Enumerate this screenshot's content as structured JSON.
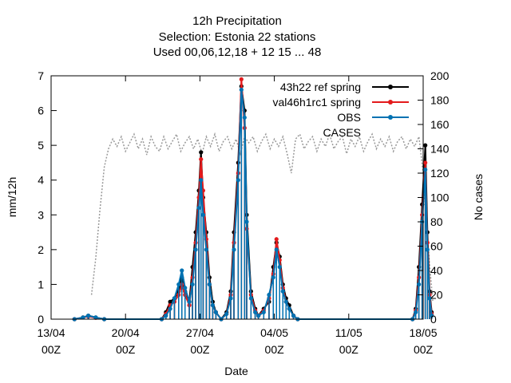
{
  "chart_data": {
    "type": "line",
    "title": [
      "12h Precipitation",
      "Selection: Estonia      22 stations",
      "Used  00,06,12,18  + 12 15 ... 48"
    ],
    "xlabel": "Date",
    "ylabel": "mm/12h",
    "y2label": "No cases",
    "xlim": [
      0,
      35
    ],
    "ylim": [
      0,
      7
    ],
    "y2lim": [
      0,
      200
    ],
    "x_ticks": [
      {
        "x": 0,
        "label": [
          "13/04",
          "00Z"
        ]
      },
      {
        "x": 7,
        "label": [
          "20/04",
          "00Z"
        ]
      },
      {
        "x": 14,
        "label": [
          "27/04",
          "00Z"
        ]
      },
      {
        "x": 21,
        "label": [
          "04/05",
          "00Z"
        ]
      },
      {
        "x": 28,
        "label": [
          "11/05",
          "00Z"
        ]
      },
      {
        "x": 35,
        "label": [
          "18/05",
          "00Z"
        ]
      }
    ],
    "y_ticks": [
      0,
      1,
      2,
      3,
      4,
      5,
      6,
      7
    ],
    "y2_ticks": [
      0,
      20,
      40,
      60,
      80,
      100,
      120,
      140,
      160,
      180,
      200
    ],
    "legend_position": "top-right",
    "series": [
      {
        "name": "43h22 ref spring",
        "color": "#000000",
        "points": [
          [
            2.2,
            0
          ],
          [
            3.0,
            0.05
          ],
          [
            3.5,
            0.1
          ],
          [
            4.2,
            0.05
          ],
          [
            5.0,
            0
          ],
          [
            10.4,
            0
          ],
          [
            10.8,
            0.2
          ],
          [
            11.2,
            0.5
          ],
          [
            11.6,
            0.6
          ],
          [
            12.0,
            0.8
          ],
          [
            12.3,
            1.2
          ],
          [
            12.6,
            0.8
          ],
          [
            13.0,
            0.5
          ],
          [
            13.3,
            1.5
          ],
          [
            13.6,
            2.5
          ],
          [
            13.9,
            3.7
          ],
          [
            14.1,
            4.8
          ],
          [
            14.3,
            3.5
          ],
          [
            14.6,
            2.5
          ],
          [
            14.9,
            1.2
          ],
          [
            15.2,
            0.5
          ],
          [
            15.5,
            0.2
          ],
          [
            16.0,
            0
          ],
          [
            16.5,
            0.2
          ],
          [
            16.9,
            0.8
          ],
          [
            17.2,
            2.5
          ],
          [
            17.6,
            4.5
          ],
          [
            17.9,
            6.7
          ],
          [
            18.2,
            6.0
          ],
          [
            18.4,
            3.0
          ],
          [
            18.8,
            0.8
          ],
          [
            19.2,
            0.3
          ],
          [
            19.5,
            0.1
          ],
          [
            20.0,
            0.3
          ],
          [
            20.5,
            0.5
          ],
          [
            20.9,
            1.5
          ],
          [
            21.2,
            2.2
          ],
          [
            21.5,
            1.8
          ],
          [
            21.8,
            1.0
          ],
          [
            22.1,
            0.6
          ],
          [
            22.4,
            0.4
          ],
          [
            22.8,
            0.1
          ],
          [
            23.2,
            0
          ],
          [
            34.0,
            0
          ],
          [
            34.3,
            0.3
          ],
          [
            34.6,
            1.5
          ],
          [
            34.9,
            3.3
          ],
          [
            35.2,
            5.0
          ],
          [
            35.4,
            2.5
          ],
          [
            35.6,
            0.8
          ],
          [
            35.8,
            0.2
          ]
        ]
      },
      {
        "name": "val46h1rc1 spring",
        "color": "#e31a1c",
        "points": [
          [
            2.2,
            0
          ],
          [
            3.0,
            0.05
          ],
          [
            3.5,
            0.08
          ],
          [
            4.2,
            0.04
          ],
          [
            5.0,
            0
          ],
          [
            10.4,
            0
          ],
          [
            10.8,
            0.15
          ],
          [
            11.2,
            0.4
          ],
          [
            11.6,
            0.5
          ],
          [
            12.0,
            0.7
          ],
          [
            12.3,
            1.0
          ],
          [
            12.6,
            0.7
          ],
          [
            13.0,
            0.4
          ],
          [
            13.3,
            1.2
          ],
          [
            13.6,
            2.2
          ],
          [
            13.9,
            3.5
          ],
          [
            14.1,
            4.6
          ],
          [
            14.3,
            3.7
          ],
          [
            14.6,
            2.3
          ],
          [
            14.9,
            1.0
          ],
          [
            15.2,
            0.4
          ],
          [
            15.5,
            0.2
          ],
          [
            16.0,
            0
          ],
          [
            16.5,
            0.15
          ],
          [
            16.9,
            0.7
          ],
          [
            17.2,
            2.2
          ],
          [
            17.6,
            4.2
          ],
          [
            17.9,
            6.9
          ],
          [
            18.2,
            5.5
          ],
          [
            18.4,
            2.6
          ],
          [
            18.8,
            0.7
          ],
          [
            19.2,
            0.25
          ],
          [
            19.5,
            0.1
          ],
          [
            20.0,
            0.25
          ],
          [
            20.5,
            0.6
          ],
          [
            20.9,
            1.3
          ],
          [
            21.2,
            2.3
          ],
          [
            21.5,
            1.7
          ],
          [
            21.8,
            0.9
          ],
          [
            22.1,
            0.5
          ],
          [
            22.4,
            0.3
          ],
          [
            22.8,
            0.1
          ],
          [
            23.2,
            0
          ],
          [
            34.0,
            0
          ],
          [
            34.3,
            0.25
          ],
          [
            34.6,
            1.2
          ],
          [
            34.9,
            3.0
          ],
          [
            35.2,
            4.5
          ],
          [
            35.4,
            2.2
          ],
          [
            35.6,
            0.7
          ],
          [
            35.8,
            0.15
          ]
        ]
      },
      {
        "name": "OBS",
        "color": "#0072b2",
        "points": [
          [
            2.2,
            0
          ],
          [
            3.0,
            0.05
          ],
          [
            3.5,
            0.1
          ],
          [
            4.2,
            0.05
          ],
          [
            5.0,
            0
          ],
          [
            10.4,
            0
          ],
          [
            10.8,
            0.1
          ],
          [
            11.2,
            0.3
          ],
          [
            11.6,
            0.6
          ],
          [
            12.0,
            1.0
          ],
          [
            12.3,
            1.4
          ],
          [
            12.6,
            0.9
          ],
          [
            13.0,
            0.5
          ],
          [
            13.3,
            1.0
          ],
          [
            13.6,
            2.0
          ],
          [
            13.9,
            3.2
          ],
          [
            14.1,
            4.0
          ],
          [
            14.3,
            3.0
          ],
          [
            14.6,
            2.0
          ],
          [
            14.9,
            1.0
          ],
          [
            15.2,
            0.4
          ],
          [
            15.5,
            0.2
          ],
          [
            16.0,
            0
          ],
          [
            16.5,
            0.15
          ],
          [
            16.9,
            0.6
          ],
          [
            17.2,
            2.0
          ],
          [
            17.6,
            4.0
          ],
          [
            17.9,
            6.6
          ],
          [
            18.2,
            5.8
          ],
          [
            18.4,
            2.8
          ],
          [
            18.8,
            0.6
          ],
          [
            19.2,
            0.2
          ],
          [
            19.5,
            0.1
          ],
          [
            20.0,
            0.2
          ],
          [
            20.5,
            0.7
          ],
          [
            20.9,
            1.2
          ],
          [
            21.2,
            2.0
          ],
          [
            21.5,
            1.5
          ],
          [
            21.8,
            0.8
          ],
          [
            22.1,
            0.5
          ],
          [
            22.4,
            0.3
          ],
          [
            22.8,
            0.1
          ],
          [
            23.2,
            0
          ],
          [
            34.0,
            0
          ],
          [
            34.3,
            0.2
          ],
          [
            34.6,
            1.0
          ],
          [
            34.9,
            2.8
          ],
          [
            35.2,
            4.3
          ],
          [
            35.4,
            2.0
          ],
          [
            35.6,
            0.6
          ],
          [
            35.8,
            0.1
          ]
        ]
      }
    ],
    "cases_series": {
      "name": "CASES",
      "color": "#999999",
      "axis": "y2",
      "points": [
        [
          3.8,
          20
        ],
        [
          4.2,
          50
        ],
        [
          4.6,
          90
        ],
        [
          5.0,
          125
        ],
        [
          5.4,
          140
        ],
        [
          5.8,
          148
        ],
        [
          6.2,
          142
        ],
        [
          6.6,
          150
        ],
        [
          7.0,
          138
        ],
        [
          7.4,
          145
        ],
        [
          7.8,
          152
        ],
        [
          8.2,
          140
        ],
        [
          8.6,
          148
        ],
        [
          9.0,
          135
        ],
        [
          9.4,
          150
        ],
        [
          9.8,
          142
        ],
        [
          10.2,
          138
        ],
        [
          10.6,
          150
        ],
        [
          11.0,
          140
        ],
        [
          11.4,
          146
        ],
        [
          11.8,
          152
        ],
        [
          12.2,
          138
        ],
        [
          12.6,
          145
        ],
        [
          13.0,
          150
        ],
        [
          13.4,
          140
        ],
        [
          13.8,
          148
        ],
        [
          14.2,
          136
        ],
        [
          14.6,
          150
        ],
        [
          15.0,
          142
        ],
        [
          15.4,
          152
        ],
        [
          15.8,
          138
        ],
        [
          16.2,
          146
        ],
        [
          16.6,
          150
        ],
        [
          17.0,
          140
        ],
        [
          17.4,
          148
        ],
        [
          17.8,
          136
        ],
        [
          18.2,
          150
        ],
        [
          18.6,
          145
        ],
        [
          19.0,
          150
        ],
        [
          19.4,
          138
        ],
        [
          19.8,
          146
        ],
        [
          20.2,
          152
        ],
        [
          20.6,
          140
        ],
        [
          21.0,
          148
        ],
        [
          21.4,
          142
        ],
        [
          21.8,
          150
        ],
        [
          22.2,
          136
        ],
        [
          22.6,
          120
        ],
        [
          23.0,
          148
        ],
        [
          23.4,
          152
        ],
        [
          23.8,
          140
        ],
        [
          24.2,
          146
        ],
        [
          24.6,
          150
        ],
        [
          25.0,
          138
        ],
        [
          25.4,
          148
        ],
        [
          25.8,
          142
        ],
        [
          26.2,
          152
        ],
        [
          26.6,
          140
        ],
        [
          27.0,
          146
        ],
        [
          27.4,
          150
        ],
        [
          27.8,
          136
        ],
        [
          28.2,
          148
        ],
        [
          28.6,
          142
        ],
        [
          29.0,
          150
        ],
        [
          29.4,
          138
        ],
        [
          29.8,
          146
        ],
        [
          30.2,
          152
        ],
        [
          30.6,
          140
        ],
        [
          31.0,
          148
        ],
        [
          31.4,
          142
        ],
        [
          31.8,
          150
        ],
        [
          32.2,
          138
        ],
        [
          32.6,
          146
        ],
        [
          33.0,
          150
        ],
        [
          33.4,
          140
        ],
        [
          33.8,
          148
        ],
        [
          34.2,
          142
        ],
        [
          34.6,
          150
        ],
        [
          35.0,
          120
        ],
        [
          35.3,
          80
        ],
        [
          35.6,
          45
        ],
        [
          35.9,
          15
        ]
      ]
    }
  }
}
